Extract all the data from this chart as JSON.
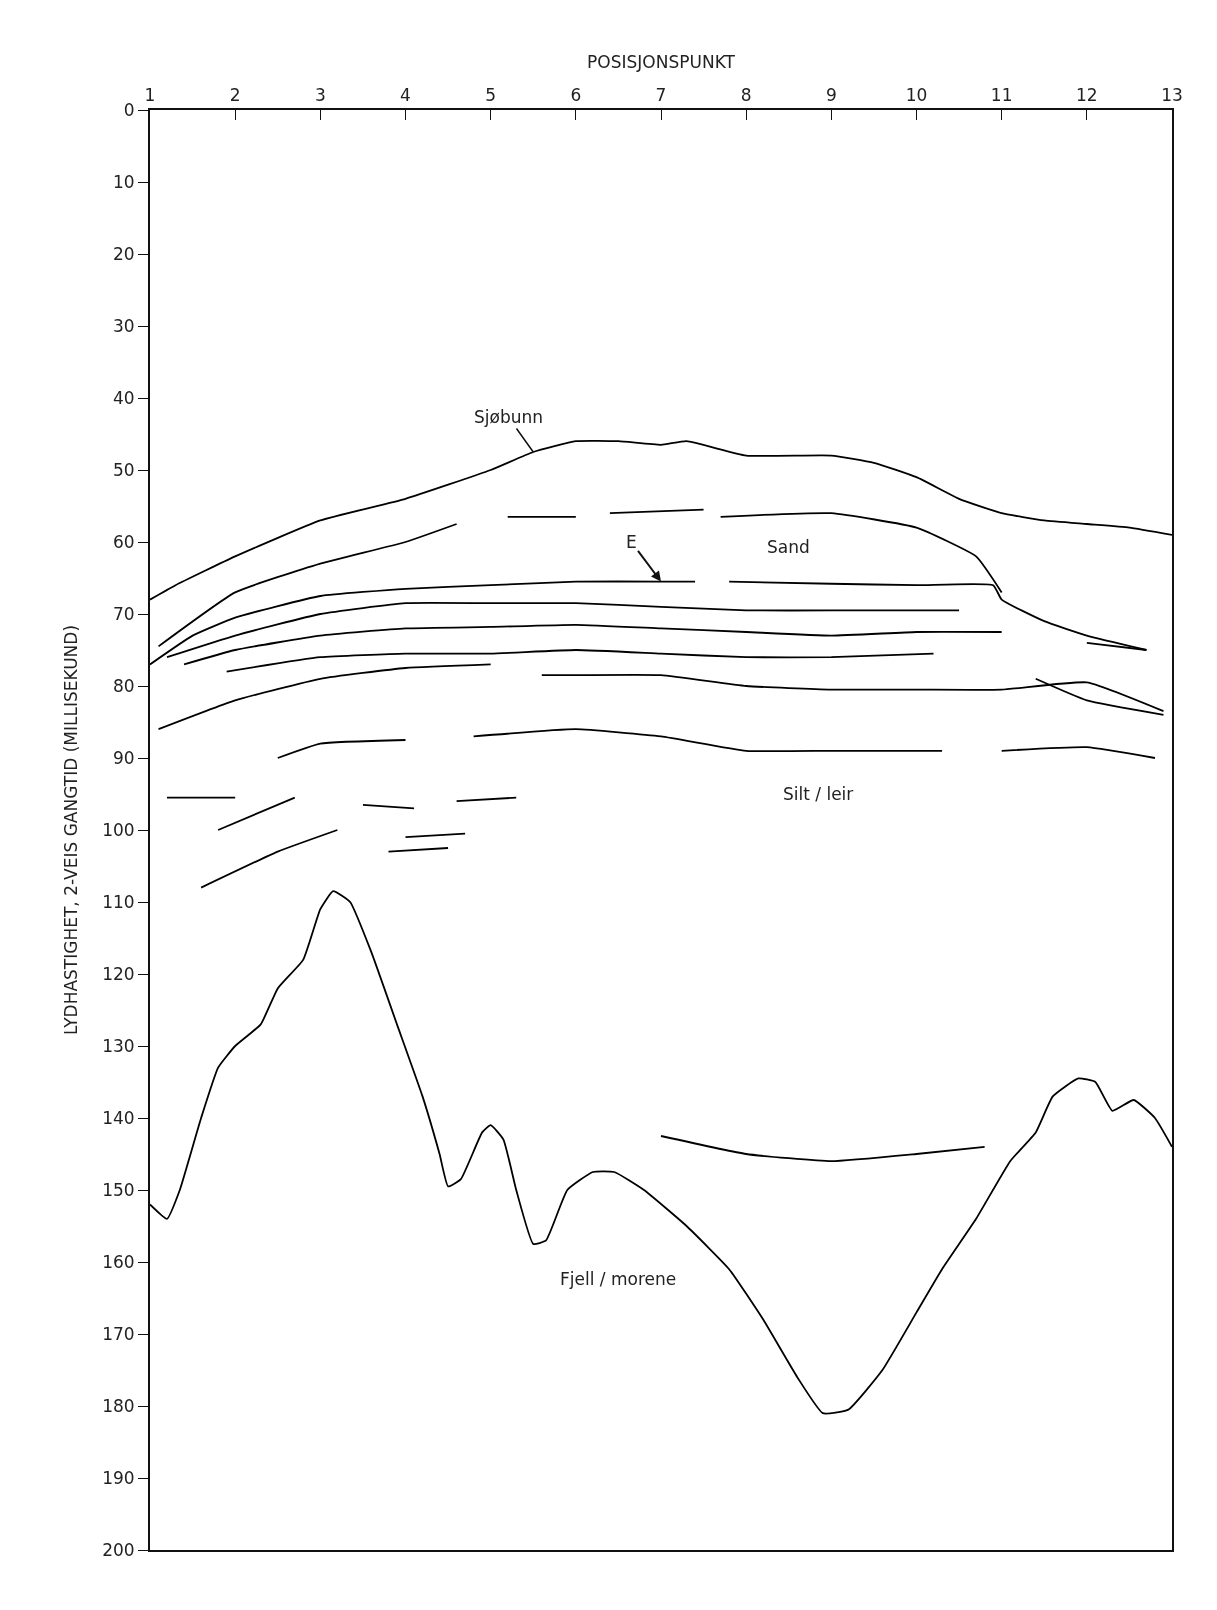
{
  "chart_data": {
    "type": "line",
    "xlabel": "POSISJONSPUNKT",
    "ylabel": "LYDHASTIGHET, 2-VEIS GANGTID (MILLISEKUND)",
    "xlim": [
      1,
      13
    ],
    "ylim": [
      200,
      0
    ],
    "xticks": [
      1,
      2,
      3,
      4,
      5,
      6,
      7,
      8,
      9,
      10,
      11,
      12,
      13
    ],
    "yticks": [
      0,
      10,
      20,
      30,
      40,
      50,
      60,
      70,
      80,
      90,
      100,
      110,
      120,
      130,
      140,
      150,
      160,
      170,
      180,
      190,
      200
    ],
    "grid": false,
    "marker": "none",
    "line_style": "solid",
    "series": [
      {
        "name": "Sjøbunn",
        "color": "#000000",
        "x": [
          1,
          1.3,
          2,
          3,
          4,
          5,
          5.5,
          6,
          6.5,
          7,
          7.3,
          8,
          9,
          9.5,
          10,
          10.5,
          11,
          11.5,
          12,
          12.5,
          13
        ],
        "values": [
          68,
          66,
          62,
          57,
          54,
          50,
          47.5,
          46,
          46,
          46.5,
          46,
          48,
          48,
          49,
          51,
          54,
          56,
          57,
          57.5,
          58,
          59
        ]
      },
      {
        "color": "#000000",
        "x": [
          1,
          1.2,
          1.35,
          1.6,
          1.8,
          2,
          2.3,
          2.5,
          2.8,
          3,
          3.15,
          3.35,
          3.6,
          3.9,
          4.2,
          4.4,
          4.5,
          4.65,
          4.9,
          5,
          5.15,
          5.3,
          5.5,
          5.65,
          5.9,
          6.2,
          6.45,
          6.8,
          7.3,
          7.8,
          8.2,
          8.6,
          8.9,
          9.2,
          9.6,
          10,
          10.3,
          10.7,
          11.1,
          11.4,
          11.6,
          11.9,
          12.1,
          12.3,
          12.55,
          12.8,
          13
        ],
        "values": [
          152,
          154,
          150,
          140,
          133,
          130,
          127,
          122,
          118,
          111,
          108.5,
          110,
          117,
          127,
          137,
          145,
          149.5,
          148.5,
          142,
          141,
          143,
          150,
          157.5,
          157,
          150,
          147.5,
          147.5,
          150,
          155,
          161,
          168,
          176,
          181,
          180.5,
          175,
          167,
          161,
          154,
          146,
          142,
          137,
          134.5,
          135,
          139,
          137.5,
          140,
          144
        ]
      },
      {
        "color": "#000000",
        "x": [
          1.1,
          2,
          3,
          4,
          4.6
        ],
        "values": [
          74.5,
          67,
          63,
          60,
          57.5
        ]
      },
      {
        "color": "#000000",
        "x": [
          5.2,
          6
        ],
        "values": [
          56.5,
          56.5
        ]
      },
      {
        "color": "#000000",
        "x": [
          6.4,
          7.5
        ],
        "values": [
          56,
          55.5
        ]
      },
      {
        "color": "#000000",
        "x": [
          7.7,
          9,
          10,
          10.7,
          11
        ],
        "values": [
          56.5,
          56,
          58,
          62,
          67
        ]
      },
      {
        "color": "#000000",
        "x": [
          1,
          1.5,
          2,
          3,
          4,
          5,
          6,
          7,
          7.4
        ],
        "values": [
          77,
          73,
          70.5,
          67.5,
          66.5,
          66,
          65.5,
          65.5,
          65.5
        ]
      },
      {
        "color": "#000000",
        "x": [
          7.8,
          9,
          10,
          10.9,
          11,
          11.5,
          12,
          12.7
        ],
        "values": [
          65.5,
          65.8,
          66,
          66,
          68,
          71,
          73,
          75
        ]
      },
      {
        "color": "#000000",
        "x": [
          1.2,
          2,
          3,
          4,
          5,
          6,
          7,
          8,
          9,
          10.5
        ],
        "values": [
          76,
          73,
          70,
          68.5,
          68.5,
          68.5,
          69,
          69.5,
          69.5,
          69.5
        ]
      },
      {
        "color": "#000000",
        "x": [
          1.4,
          2,
          3,
          4,
          5,
          6,
          7,
          8,
          9,
          10,
          11
        ],
        "values": [
          77,
          75,
          73,
          72,
          71.8,
          71.5,
          72,
          72.5,
          73,
          72.5,
          72.5
        ]
      },
      {
        "color": "#000000",
        "x": [
          1.9,
          3,
          4,
          5,
          6,
          7,
          8,
          9,
          10.2
        ],
        "values": [
          78,
          76,
          75.5,
          75.5,
          75,
          75.5,
          76,
          76,
          75.5
        ]
      },
      {
        "color": "#000000",
        "x": [
          1.1,
          2,
          3,
          4,
          5
        ],
        "values": [
          86,
          82,
          79,
          77.5,
          77
        ]
      },
      {
        "color": "#000000",
        "x": [
          5.6,
          6,
          7,
          8,
          9,
          10,
          11,
          12,
          12.9
        ],
        "values": [
          78.5,
          78.5,
          78.5,
          80,
          80.5,
          80.5,
          80.5,
          79.5,
          83.5
        ]
      },
      {
        "color": "#000000",
        "x": [
          2.5,
          3,
          4
        ],
        "values": [
          90,
          88,
          87.5
        ]
      },
      {
        "color": "#000000",
        "x": [
          4.8,
          6,
          7,
          8,
          9,
          10.3
        ],
        "values": [
          87,
          86,
          87,
          89,
          89,
          89
        ]
      },
      {
        "color": "#000000",
        "x": [
          11,
          12,
          12.8
        ],
        "values": [
          89,
          88.5,
          90
        ]
      },
      {
        "color": "#000000",
        "x": [
          1.2,
          2
        ],
        "values": [
          95.5,
          95.5
        ]
      },
      {
        "color": "#000000",
        "x": [
          1.8,
          2.7
        ],
        "values": [
          100,
          95.5
        ]
      },
      {
        "color": "#000000",
        "x": [
          1.6,
          2.5,
          3.2
        ],
        "values": [
          108,
          103,
          100
        ]
      },
      {
        "color": "#000000",
        "x": [
          3.5,
          4.1
        ],
        "values": [
          96.5,
          97
        ]
      },
      {
        "color": "#000000",
        "x": [
          4.6,
          5.3
        ],
        "values": [
          96,
          95.5
        ]
      },
      {
        "color": "#000000",
        "x": [
          3.8,
          4.5
        ],
        "values": [
          103,
          102.5
        ]
      },
      {
        "color": "#000000",
        "x": [
          4,
          4.7
        ],
        "values": [
          101,
          100.5
        ]
      },
      {
        "color": "#000000",
        "x": [
          11.4,
          12,
          12.9
        ],
        "values": [
          79,
          82,
          84
        ]
      },
      {
        "color": "#000000",
        "x": [
          12,
          12.7
        ],
        "values": [
          74,
          75
        ]
      },
      {
        "color": "#000000",
        "x": [
          7,
          8,
          9,
          10,
          10.8
        ],
        "values": [
          142.5,
          145,
          146,
          145,
          144
        ]
      }
    ],
    "annotations": [
      "Sand",
      {
        "text": "E",
        "x": 7,
        "y": 65.5
      },
      "Silt / leir",
      "Fjell / morene"
    ]
  }
}
